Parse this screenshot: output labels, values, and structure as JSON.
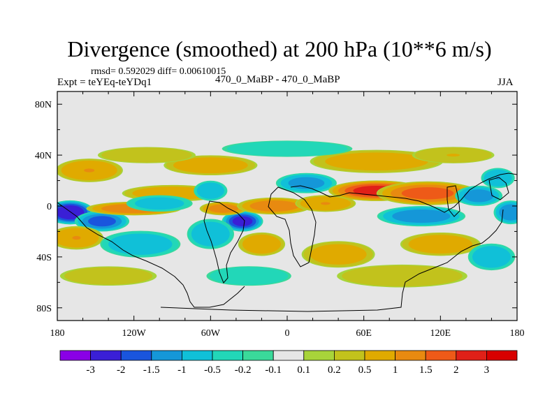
{
  "chart_data": {
    "type": "heatmap",
    "title": "Divergence (smoothed) at 200 hPa (10**6 m/s)",
    "stats_text": "rmsd= 0.592029 diff= 0.00610015",
    "left_label": "Expt = teYEq-teYDq1",
    "center_label": "470_0_MaBP - 470_0_MaBP",
    "right_label": "JJA",
    "xlim": [
      -180,
      180
    ],
    "ylim": [
      -90,
      90
    ],
    "x_ticks": [
      {
        "value": -180,
        "label": "180"
      },
      {
        "value": -120,
        "label": "120W"
      },
      {
        "value": -60,
        "label": "60W"
      },
      {
        "value": 0,
        "label": "0"
      },
      {
        "value": 60,
        "label": "60E"
      },
      {
        "value": 120,
        "label": "120E"
      },
      {
        "value": 180,
        "label": "180"
      }
    ],
    "y_ticks": [
      {
        "value": 80,
        "label": "80N"
      },
      {
        "value": 40,
        "label": "40N"
      },
      {
        "value": 0,
        "label": "0"
      },
      {
        "value": -40,
        "label": "40S"
      },
      {
        "value": -80,
        "label": "80S"
      }
    ],
    "colorbar": {
      "labels": [
        "-3",
        "-2",
        "-1.5",
        "-1",
        "-0.5",
        "-0.2",
        "-0.1",
        "0.1",
        "0.2",
        "0.5",
        "1",
        "1.5",
        "2",
        "3"
      ],
      "colors": [
        "#8a00e6",
        "#3a1fd6",
        "#1a55dd",
        "#1597d8",
        "#10c0d8",
        "#22d7b8",
        "#3ad99a",
        "#e6e6e6",
        "#a8d43a",
        "#c2c21c",
        "#e0aa00",
        "#e88a10",
        "#ee5a18",
        "#e02018",
        "#d80000"
      ]
    },
    "features": [
      {
        "lon": -170,
        "lat": -5,
        "value": -2.6,
        "sx": 14,
        "sy": 7
      },
      {
        "lon": -145,
        "lat": -12,
        "value": -1.6,
        "sx": 16,
        "sy": 6
      },
      {
        "lon": -120,
        "lat": -2,
        "value": 1.4,
        "sx": 28,
        "sy": 4
      },
      {
        "lon": -90,
        "lat": 10,
        "value": 0.8,
        "sx": 30,
        "sy": 5
      },
      {
        "lon": -100,
        "lat": 2,
        "value": -0.6,
        "sx": 20,
        "sy": 5
      },
      {
        "lon": -60,
        "lat": 12,
        "value": -0.9,
        "sx": 10,
        "sy": 6
      },
      {
        "lon": -35,
        "lat": -12,
        "value": -2.2,
        "sx": 12,
        "sy": 6
      },
      {
        "lon": -50,
        "lat": -2,
        "value": 1.2,
        "sx": 14,
        "sy": 4
      },
      {
        "lon": -10,
        "lat": 0,
        "value": 1.3,
        "sx": 22,
        "sy": 5
      },
      {
        "lon": 30,
        "lat": 2,
        "value": 1.0,
        "sx": 18,
        "sy": 5
      },
      {
        "lon": 15,
        "lat": 18,
        "value": -1.1,
        "sx": 18,
        "sy": 6
      },
      {
        "lon": 70,
        "lat": 12,
        "value": 2.2,
        "sx": 28,
        "sy": 6
      },
      {
        "lon": 110,
        "lat": 10,
        "value": 1.6,
        "sx": 30,
        "sy": 7
      },
      {
        "lon": 105,
        "lat": -8,
        "value": -1.3,
        "sx": 26,
        "sy": 6
      },
      {
        "lon": 150,
        "lat": 8,
        "value": -1.2,
        "sx": 14,
        "sy": 6
      },
      {
        "lon": 165,
        "lat": 22,
        "value": -1.0,
        "sx": 10,
        "sy": 6
      },
      {
        "lon": 175,
        "lat": -5,
        "value": -1.4,
        "sx": 10,
        "sy": 7
      },
      {
        "lon": -155,
        "lat": 28,
        "value": 1.0,
        "sx": 20,
        "sy": 7
      },
      {
        "lon": -60,
        "lat": 32,
        "value": 0.8,
        "sx": 28,
        "sy": 6
      },
      {
        "lon": 70,
        "lat": 35,
        "value": 0.7,
        "sx": 40,
        "sy": 7
      },
      {
        "lon": -165,
        "lat": -25,
        "value": 1.0,
        "sx": 16,
        "sy": 7
      },
      {
        "lon": -115,
        "lat": -30,
        "value": -0.8,
        "sx": 24,
        "sy": 8
      },
      {
        "lon": -60,
        "lat": -22,
        "value": -0.9,
        "sx": 14,
        "sy": 9
      },
      {
        "lon": -20,
        "lat": -30,
        "value": 0.9,
        "sx": 14,
        "sy": 7
      },
      {
        "lon": 40,
        "lat": -38,
        "value": 0.7,
        "sx": 22,
        "sy": 8
      },
      {
        "lon": 120,
        "lat": -30,
        "value": 0.8,
        "sx": 24,
        "sy": 7
      },
      {
        "lon": 160,
        "lat": -40,
        "value": -0.9,
        "sx": 14,
        "sy": 8
      },
      {
        "lon": -30,
        "lat": -55,
        "value": -0.4,
        "sx": 26,
        "sy": 6
      },
      {
        "lon": 90,
        "lat": -55,
        "value": 0.4,
        "sx": 40,
        "sy": 7
      },
      {
        "lon": -140,
        "lat": -55,
        "value": 0.3,
        "sx": 30,
        "sy": 6
      },
      {
        "lon": 0,
        "lat": 45,
        "value": -0.4,
        "sx": 40,
        "sy": 5
      },
      {
        "lon": -110,
        "lat": 40,
        "value": 0.4,
        "sx": 30,
        "sy": 5
      },
      {
        "lon": 130,
        "lat": 40,
        "value": 0.5,
        "sx": 25,
        "sy": 5
      }
    ]
  }
}
